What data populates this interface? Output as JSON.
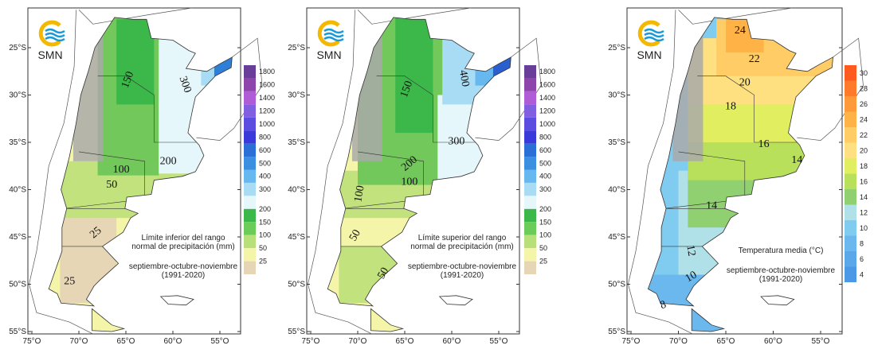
{
  "logo": "SMN",
  "lat_ticks": [
    "25°S",
    "30°S",
    "35°S",
    "40°S",
    "45°S",
    "50°S",
    "55°S"
  ],
  "lon_ticks": [
    "75°O",
    "70°O",
    "65°O",
    "60°O",
    "55°O"
  ],
  "maps": [
    {
      "caption": [
        "Límite inferior del rango",
        "normal de precipitación (mm)"
      ],
      "period": [
        "septiembre-octubre-noviembre",
        "(1991-2020)"
      ],
      "legend": [
        "1800",
        "1600",
        "1400",
        "1200",
        "1000",
        "800",
        "600",
        "500",
        "400",
        "300",
        "200",
        "150",
        "100",
        "50",
        "25"
      ],
      "contours": [
        "150",
        "300",
        "200",
        "100",
        "50",
        "25",
        "25"
      ]
    },
    {
      "caption": [
        "Límite superior del rango",
        "normal de precipitación (mm)"
      ],
      "period": [
        "septiembre-octubre-noviembre",
        "(1991-2020)"
      ],
      "legend": [
        "1800",
        "1600",
        "1400",
        "1200",
        "1000",
        "800",
        "600",
        "500",
        "400",
        "300",
        "200",
        "150",
        "100",
        "50",
        "25"
      ],
      "contours": [
        "400",
        "150",
        "300",
        "200",
        "100",
        "100",
        "50",
        "50"
      ]
    },
    {
      "caption": [
        "Temperatura media (°C)"
      ],
      "period": [
        "septiembre-octubre-noviembre",
        "(1991-2020)"
      ],
      "legend": [
        "30",
        "28",
        "26",
        "24",
        "22",
        "20",
        "18",
        "16",
        "14",
        "12",
        "10",
        "8",
        "6",
        "4"
      ],
      "contours": [
        "24",
        "22",
        "20",
        "18",
        "16",
        "14",
        "14",
        "12",
        "10",
        "8"
      ]
    }
  ]
}
